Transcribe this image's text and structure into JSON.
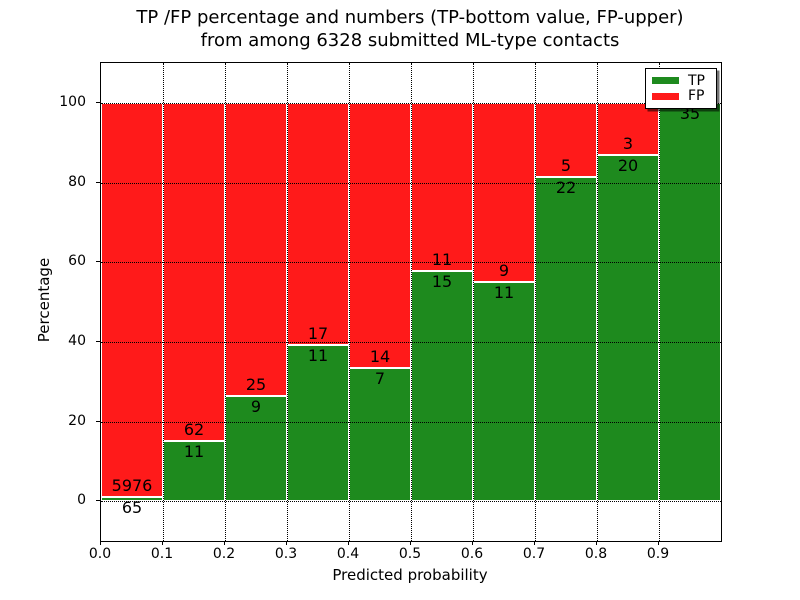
{
  "title": {
    "line1": "TP /FP percentage and numbers (TP-bottom value, FP-upper)",
    "line2": "from among 6328 submitted ML-type contacts"
  },
  "axes": {
    "xlabel": "Predicted probability",
    "ylabel": "Percentage",
    "xticks": [
      "0.0",
      "0.1",
      "0.2",
      "0.3",
      "0.4",
      "0.5",
      "0.6",
      "0.7",
      "0.8",
      "0.9"
    ],
    "yticks": [
      0,
      20,
      40,
      60,
      80,
      100
    ],
    "ylim": [
      -10,
      110
    ],
    "xlim": [
      0.0,
      1.0
    ],
    "grid_style": "dotted"
  },
  "legend": {
    "position": "upper-right",
    "items": [
      {
        "label": "TP",
        "color": "#1e8a1e"
      },
      {
        "label": "FP",
        "color": "#ff1a1a"
      }
    ]
  },
  "chart_data": {
    "type": "bar",
    "stacked": true,
    "title": "TP /FP percentage and numbers (TP-bottom value, FP-upper) from among 6328 submitted ML-type contacts",
    "xlabel": "Predicted probability",
    "ylabel": "Percentage",
    "total_contacts": 6328,
    "bin_width": 0.1,
    "bin_starts": [
      0.0,
      0.1,
      0.2,
      0.3,
      0.4,
      0.5,
      0.6,
      0.7,
      0.8,
      0.9
    ],
    "unit": "percent of bin total (TP% + FP% = 100)",
    "series": [
      {
        "name": "TP",
        "color": "#1e8a1e",
        "counts": [
          65,
          11,
          9,
          11,
          7,
          15,
          11,
          22,
          20,
          35
        ]
      },
      {
        "name": "FP",
        "color": "#ff1a1a",
        "counts": [
          5976,
          62,
          25,
          17,
          14,
          11,
          9,
          5,
          3,
          0
        ]
      }
    ],
    "tp_percent_heights": [
      1.08,
      15.07,
      26.47,
      39.29,
      33.33,
      57.69,
      55.0,
      81.48,
      86.96,
      100.0
    ],
    "ylim": [
      -10,
      110
    ],
    "grid": "on-dotted",
    "legend_position": "upper-right"
  }
}
